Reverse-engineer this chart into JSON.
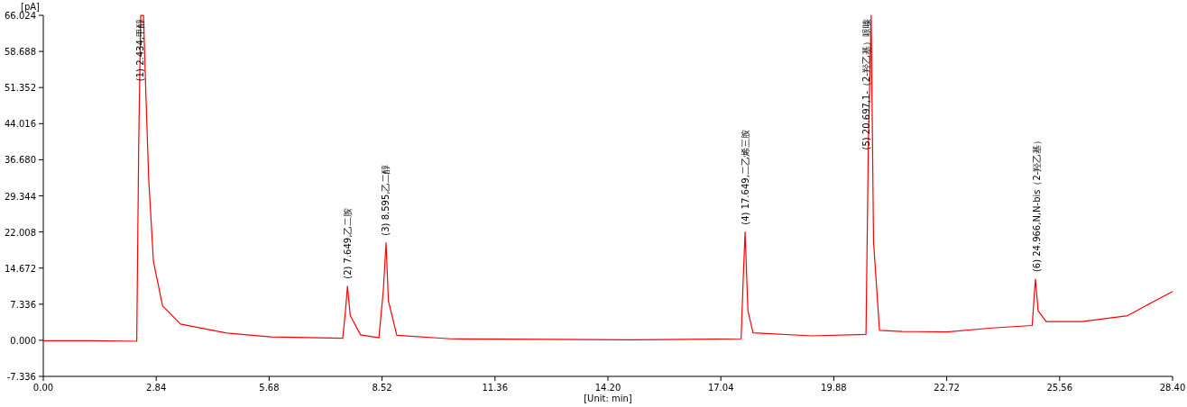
{
  "chart_data": {
    "type": "line",
    "xlabel": "[Unit: min]",
    "ylabel": "[pA]",
    "xlim": [
      0,
      28.4
    ],
    "ylim": [
      -7.336,
      66.024
    ],
    "xticks": [
      {
        "value": 0,
        "label": "0.00"
      },
      {
        "value": 2.84,
        "label": "2.84"
      },
      {
        "value": 5.68,
        "label": "5.68"
      },
      {
        "value": 8.52,
        "label": "8.52"
      },
      {
        "value": 11.36,
        "label": "11.36"
      },
      {
        "value": 14.2,
        "label": "14.20"
      },
      {
        "value": 17.04,
        "label": "17.04"
      },
      {
        "value": 19.88,
        "label": "19.88"
      },
      {
        "value": 22.72,
        "label": "22.72"
      },
      {
        "value": 25.56,
        "label": "25.56"
      },
      {
        "value": 28.4,
        "label": "28.40"
      }
    ],
    "yticks": [
      {
        "value": -7.336,
        "label": "-7.336"
      },
      {
        "value": 0,
        "label": "0.000"
      },
      {
        "value": 7.336,
        "label": "7.336"
      },
      {
        "value": 14.672,
        "label": "14.672"
      },
      {
        "value": 22.008,
        "label": "22.008"
      },
      {
        "value": 29.344,
        "label": "29.344"
      },
      {
        "value": 36.68,
        "label": "36.680"
      },
      {
        "value": 44.016,
        "label": "44.016"
      },
      {
        "value": 51.352,
        "label": "51.352"
      },
      {
        "value": 58.688,
        "label": "58.688"
      },
      {
        "value": 66.024,
        "label": "66.024"
      }
    ],
    "grid": false,
    "line_style": "solid",
    "x": [
      0,
      1.2,
      2.35,
      2.4,
      2.45,
      2.52,
      2.58,
      2.65,
      2.77,
      3.0,
      3.45,
      4.58,
      5.72,
      7.53,
      7.6,
      7.65,
      7.72,
      7.98,
      8.44,
      8.55,
      8.62,
      8.68,
      8.89,
      10.25,
      14.8,
      17.55,
      17.6,
      17.65,
      17.72,
      17.85,
      19.33,
      20.69,
      20.75,
      20.82,
      20.88,
      21.03,
      21.6,
      22.73,
      23.86,
      24.87,
      24.92,
      24.95,
      25.02,
      25.22,
      26.13,
      27.27,
      27.95,
      28.4
    ],
    "series": [
      {
        "color": "#ff0000",
        "values": [
          -0.1,
          -0.1,
          -0.2,
          40,
          66,
          66,
          50,
          33,
          16,
          7,
          3.3,
          1.5,
          0.7,
          0.4,
          6,
          11,
          5,
          1.1,
          0.5,
          10,
          19.8,
          8,
          1.0,
          0.3,
          0.1,
          0.3,
          12,
          22,
          6,
          1.5,
          0.9,
          1.2,
          40,
          66,
          20,
          2.0,
          1.8,
          1.7,
          2.5,
          3.0,
          9,
          12.4,
          6,
          3.8,
          3.8,
          5.0,
          8.0,
          9.9
        ]
      }
    ],
    "annotations": [
      {
        "text": "(1) 2.434,甲醇",
        "x": 2.434,
        "y": 66
      },
      {
        "text": "(2) 7.649,乙二胺",
        "x": 7.649,
        "y": 11
      },
      {
        "text": "(3) 8.595,乙二醇",
        "x": 8.595,
        "y": 19.8
      },
      {
        "text": "(4) 17.649,二乙烯三胺",
        "x": 17.649,
        "y": 22
      },
      {
        "text": "(5) 20.697,1-（2-羟乙基）哌嗪",
        "x": 20.697,
        "y": 66
      },
      {
        "text": "(6) 24.966,N,N-bis（2-羟乙基）",
        "x": 24.966,
        "y": 12.4
      }
    ]
  }
}
